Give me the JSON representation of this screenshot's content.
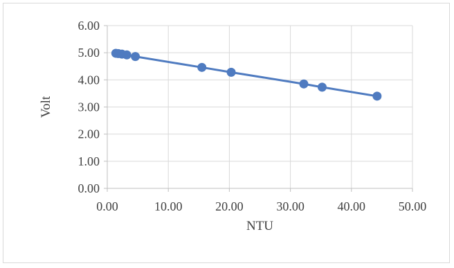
{
  "chart_data": {
    "type": "scatter",
    "title": "",
    "xlabel": "NTU",
    "ylabel": "Volt",
    "xlim": [
      0,
      50
    ],
    "ylim": [
      0,
      6
    ],
    "x_ticks": [
      "0.00",
      "10.00",
      "20.00",
      "30.00",
      "40.00",
      "50.00"
    ],
    "y_ticks": [
      "0.00",
      "1.00",
      "2.00",
      "3.00",
      "4.00",
      "5.00",
      "6.00"
    ],
    "grid": "vertical and horizontal major gridlines",
    "legend": "none",
    "series": [
      {
        "points": [
          {
            "x": 1.4,
            "y": 4.98
          },
          {
            "x": 1.8,
            "y": 4.97
          },
          {
            "x": 2.4,
            "y": 4.95
          },
          {
            "x": 3.2,
            "y": 4.92
          },
          {
            "x": 4.6,
            "y": 4.86
          },
          {
            "x": 15.5,
            "y": 4.46
          },
          {
            "x": 20.3,
            "y": 4.28
          },
          {
            "x": 32.2,
            "y": 3.85
          },
          {
            "x": 35.2,
            "y": 3.73
          },
          {
            "x": 44.2,
            "y": 3.4
          }
        ],
        "line": true
      }
    ],
    "colors": {
      "series": "#4f7bc0",
      "grid": "#d9d9d9",
      "axis": "#bfbfbf",
      "text": "#404040"
    }
  }
}
